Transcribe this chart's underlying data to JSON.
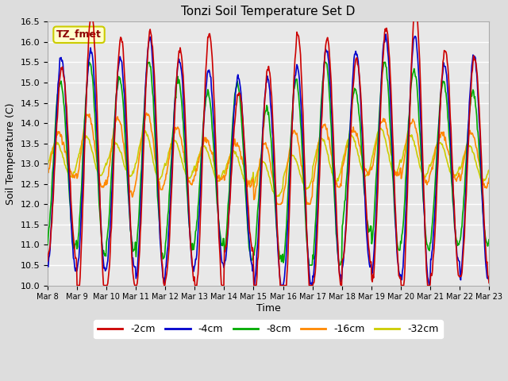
{
  "title": "Tonzi Soil Temperature Set D",
  "xlabel": "Time",
  "ylabel": "Soil Temperature (C)",
  "ylim": [
    10.0,
    16.5
  ],
  "yticks": [
    10.0,
    10.5,
    11.0,
    11.5,
    12.0,
    12.5,
    13.0,
    13.5,
    14.0,
    14.5,
    15.0,
    15.5,
    16.0,
    16.5
  ],
  "series": {
    "-2cm": {
      "color": "#cc0000",
      "lw": 1.2
    },
    "-4cm": {
      "color": "#0000cc",
      "lw": 1.2
    },
    "-8cm": {
      "color": "#00aa00",
      "lw": 1.2
    },
    "-16cm": {
      "color": "#ff8800",
      "lw": 1.2
    },
    "-32cm": {
      "color": "#cccc00",
      "lw": 1.2
    }
  },
  "annotation_text": "TZ_fmet",
  "annotation_color": "#8b0000",
  "annotation_bg": "#ffffcc",
  "annotation_border": "#cccc00",
  "n_days": 15,
  "start_day": 8,
  "pts_per_day": 48
}
